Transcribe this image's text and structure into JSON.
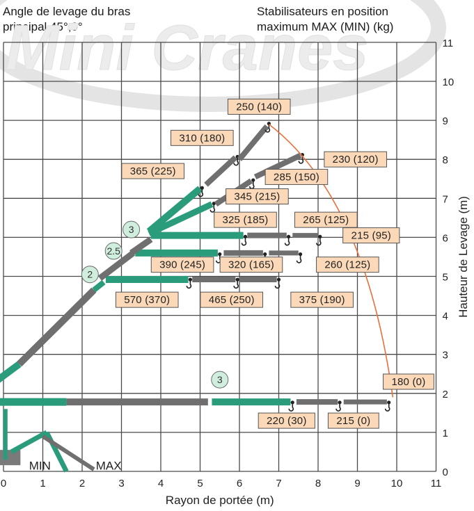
{
  "header": {
    "left_line1": "Angle de levage du bras",
    "left_line2": "principal 45°,0°",
    "right_line1": "Stabilisateurs en position",
    "right_line2": "maximum MAX (MIN) (kg)"
  },
  "watermark": "Mini Cranes",
  "axes": {
    "x_label": "Rayon de portée (m)",
    "y_label": "Hauteur de Levage (m)",
    "x_ticks": [
      "0",
      "1",
      "2",
      "3",
      "4",
      "5",
      "6",
      "7",
      "8",
      "9",
      "10",
      "11"
    ],
    "y_ticks": [
      "0",
      "1",
      "2",
      "3",
      "4",
      "5",
      "6",
      "7",
      "8",
      "9",
      "10",
      "11"
    ]
  },
  "base_labels": {
    "min": "MIN",
    "max": "MAX"
  },
  "sections": [
    {
      "label": "3",
      "x": 3.25,
      "y": 6.2
    },
    {
      "label": "2.5",
      "x": 2.8,
      "y": 5.65
    },
    {
      "label": "2",
      "x": 2.2,
      "y": 5.05
    },
    {
      "label": "3",
      "x": 5.5,
      "y": 2.35
    }
  ],
  "loads": [
    {
      "text": "250 (140)",
      "x": 6.5,
      "y": 9.35
    },
    {
      "text": "310 (180)",
      "x": 5.05,
      "y": 8.55
    },
    {
      "text": "230 (120)",
      "x": 8.95,
      "y": 8.0
    },
    {
      "text": "365 (225)",
      "x": 3.8,
      "y": 7.7
    },
    {
      "text": "285 (150)",
      "x": 7.45,
      "y": 7.55
    },
    {
      "text": "345 (215)",
      "x": 6.45,
      "y": 7.05
    },
    {
      "text": "325 (185)",
      "x": 6.15,
      "y": 6.45
    },
    {
      "text": "265 (125)",
      "x": 8.2,
      "y": 6.45
    },
    {
      "text": "215 (95)",
      "x": 9.35,
      "y": 6.05
    },
    {
      "text": "390 (245)",
      "x": 4.55,
      "y": 5.3
    },
    {
      "text": "320 (165)",
      "x": 6.3,
      "y": 5.3
    },
    {
      "text": "260 (125)",
      "x": 8.75,
      "y": 5.3
    },
    {
      "text": "570 (370)",
      "x": 3.65,
      "y": 4.4
    },
    {
      "text": "465 (250)",
      "x": 5.8,
      "y": 4.4
    },
    {
      "text": "375 (190)",
      "x": 8.1,
      "y": 4.4
    },
    {
      "text": "180 (0)",
      "x": 10.3,
      "y": 2.3
    },
    {
      "text": "220 (30)",
      "x": 7.2,
      "y": 1.3
    },
    {
      "text": "215 (0)",
      "x": 8.9,
      "y": 1.3
    }
  ],
  "colors": {
    "boom_green": "#2a9c7c",
    "boom_gray": "#6f6f6f",
    "envelope_line": "#e8703a",
    "grid": "#4a4a4a",
    "label_fill": "#fbd9b8"
  }
}
